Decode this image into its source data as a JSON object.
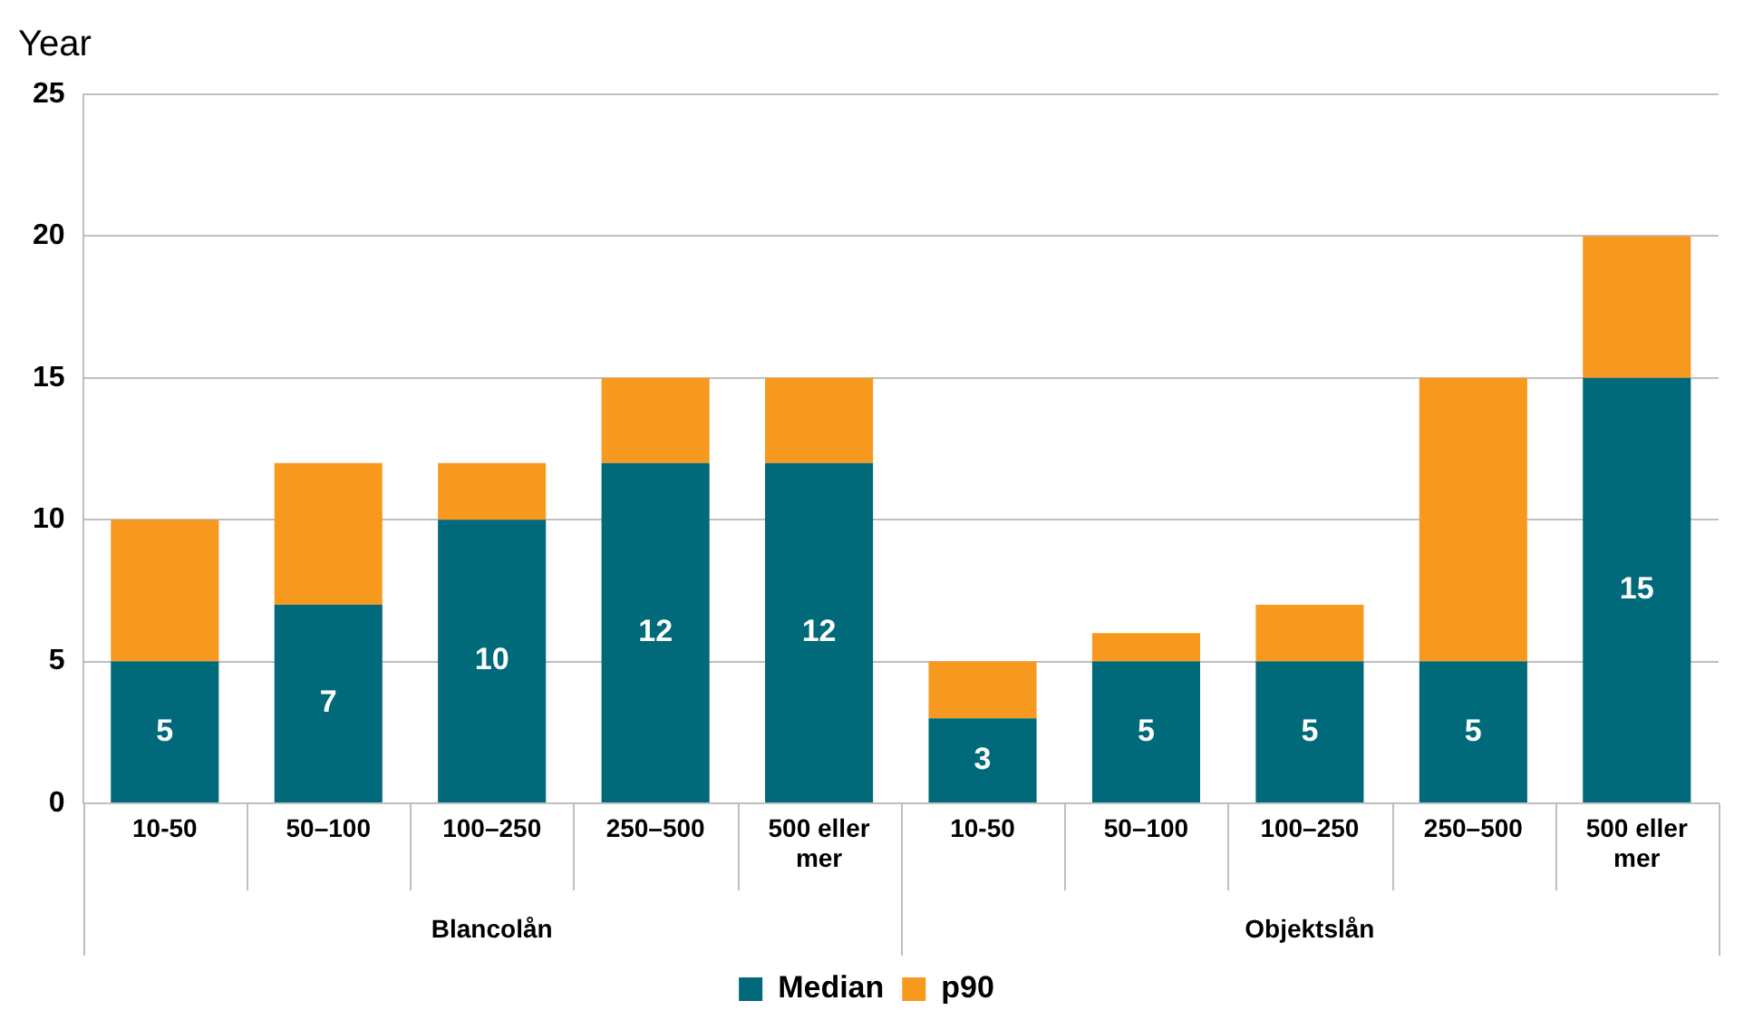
{
  "chart_data": {
    "type": "bar",
    "stacked": true,
    "ylabel": "Year",
    "categories": [
      "10-50",
      "50–100",
      "100–250",
      "250–500",
      "500 eller mer",
      "10-50",
      "50–100",
      "100–250",
      "250–500",
      "500 eller mer"
    ],
    "series": [
      {
        "name": "Median",
        "color": "#006a7a",
        "values": [
          5,
          7,
          10,
          12,
          12,
          3,
          5,
          5,
          5,
          15
        ],
        "value_labels": [
          "5",
          "7",
          "10",
          "12",
          "12",
          "3",
          "5",
          "5",
          "5",
          "15"
        ]
      },
      {
        "name": "p90",
        "color": "#f7991f",
        "values": [
          5,
          5,
          2,
          3,
          3,
          2,
          1,
          2,
          10,
          5
        ]
      }
    ],
    "ylim": [
      0,
      25
    ],
    "yticks": [
      0,
      5,
      10,
      15,
      20,
      25
    ],
    "grid": "y",
    "legend": "bottom",
    "annotations": [
      "Blancolån",
      "Objektslån"
    ]
  }
}
